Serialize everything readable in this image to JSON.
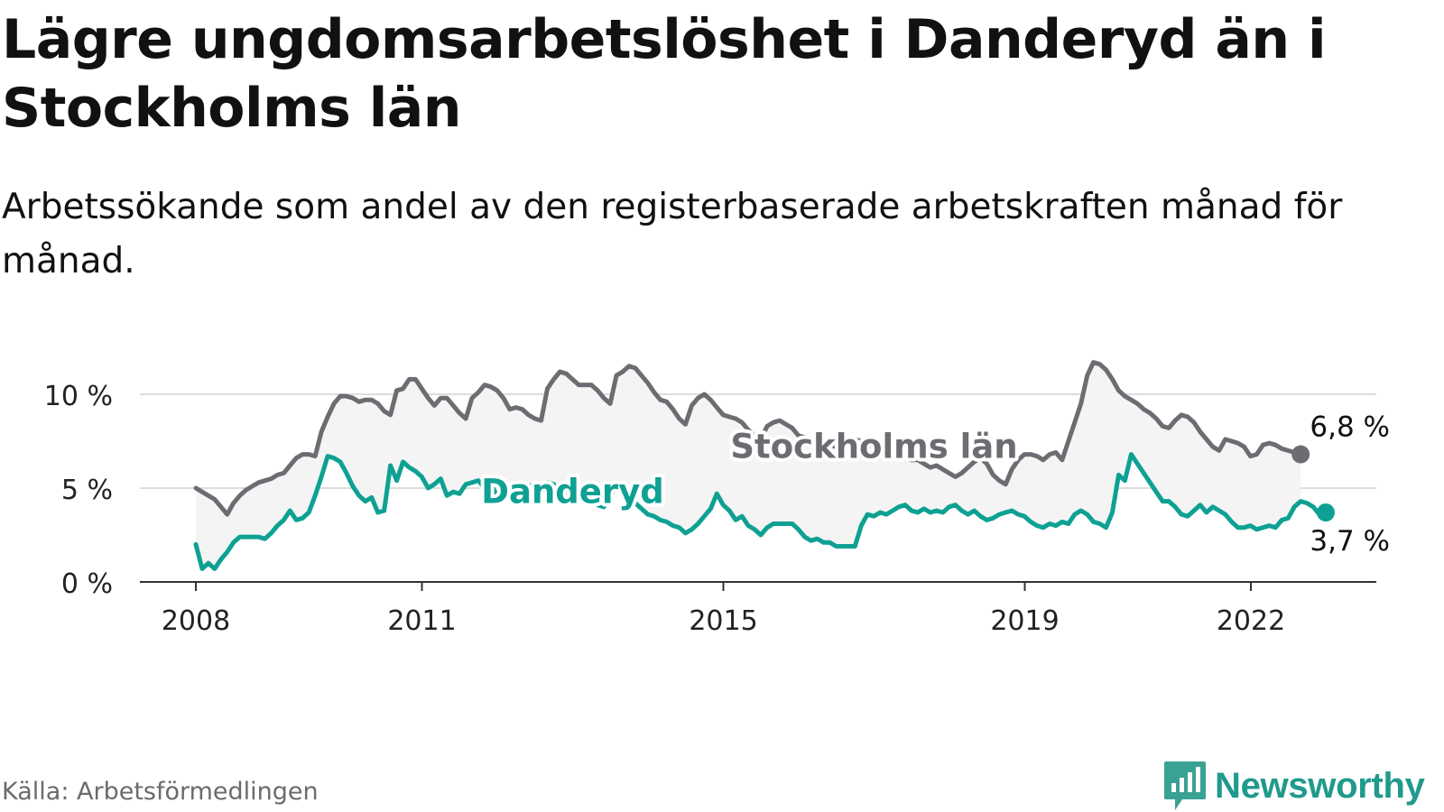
{
  "title": "Lägre ungdomsarbetslöshet i Danderyd än i Stockholms län",
  "subtitle": "Arbetssökande som andel av den registerbaserade arbetskraften månad för månad.",
  "source": "Källa: Arbetsförmedlingen",
  "brand": "Newsworthy",
  "colors": {
    "stockholm": "#6d6c72",
    "danderyd": "#0ea193",
    "band": "#f4f4f4",
    "grid": "#dddddd",
    "axis": "#333333"
  },
  "chart_data": {
    "type": "line",
    "title": "Lägre ungdomsarbetslöshet i Danderyd än i Stockholms län",
    "xlabel": "",
    "ylabel": "",
    "ylim": [
      0,
      12
    ],
    "xlim": [
      2007.6,
      2024.0
    ],
    "y_ticks": [
      0,
      5,
      10
    ],
    "y_tick_labels": [
      "0 %",
      "5 %",
      "10 %"
    ],
    "x_ticks": [
      2008,
      2011,
      2015,
      2019,
      2022
    ],
    "x_tick_labels": [
      "2008",
      "2011",
      "2015",
      "2019",
      "2022"
    ],
    "x_start": 2008.0,
    "x_step": 0.0833,
    "grid": true,
    "series": [
      {
        "name": "Stockholms län",
        "end_label": "6,8 %",
        "values": [
          5.0,
          4.8,
          4.6,
          4.4,
          4.0,
          3.6,
          4.2,
          4.6,
          4.9,
          5.1,
          5.3,
          5.4,
          5.5,
          5.7,
          5.8,
          6.2,
          6.6,
          6.8,
          6.8,
          6.7,
          8.0,
          8.8,
          9.5,
          9.9,
          9.9,
          9.8,
          9.6,
          9.7,
          9.7,
          9.5,
          9.1,
          8.9,
          10.2,
          10.3,
          10.8,
          10.8,
          10.3,
          9.8,
          9.4,
          9.8,
          9.8,
          9.4,
          9.0,
          8.7,
          9.8,
          10.1,
          10.5,
          10.4,
          10.2,
          9.8,
          9.2,
          9.3,
          9.2,
          8.9,
          8.7,
          8.6,
          10.3,
          10.8,
          11.2,
          11.1,
          10.8,
          10.5,
          10.5,
          10.5,
          10.2,
          9.8,
          9.5,
          11.0,
          11.2,
          11.5,
          11.4,
          11.0,
          10.6,
          10.1,
          9.7,
          9.6,
          9.2,
          8.7,
          8.4,
          9.4,
          9.8,
          10.0,
          9.7,
          9.3,
          8.9,
          8.8,
          8.7,
          8.5,
          8.1,
          7.8,
          7.6,
          8.3,
          8.5,
          8.6,
          8.4,
          8.2,
          7.8,
          7.7,
          7.6,
          7.5,
          7.4,
          7.3,
          7.2,
          7.4,
          7.5,
          7.6,
          7.5,
          7.3,
          7.2,
          7.1,
          7.0,
          6.9,
          6.8,
          6.6,
          6.5,
          6.5,
          6.3,
          6.1,
          6.2,
          6.0,
          5.8,
          5.6,
          5.8,
          6.1,
          6.4,
          6.6,
          6.3,
          5.7,
          5.4,
          5.2,
          6.0,
          6.5,
          6.8,
          6.8,
          6.7,
          6.5,
          6.8,
          6.9,
          6.5,
          7.5,
          8.5,
          9.5,
          11.0,
          11.7,
          11.6,
          11.3,
          10.8,
          10.2,
          9.9,
          9.7,
          9.5,
          9.2,
          9.0,
          8.7,
          8.3,
          8.2,
          8.6,
          8.9,
          8.8,
          8.5,
          8.0,
          7.6,
          7.2,
          7.0,
          7.6,
          7.5,
          7.4,
          7.2,
          6.7,
          6.8,
          7.3,
          7.4,
          7.3,
          7.1,
          7.0,
          6.9,
          6.8
        ]
      },
      {
        "name": "Danderyd",
        "end_label": "3,7 %",
        "values": [
          2.0,
          0.7,
          1.0,
          0.7,
          1.2,
          1.6,
          2.1,
          2.4,
          2.4,
          2.4,
          2.4,
          2.3,
          2.6,
          3.0,
          3.3,
          3.8,
          3.3,
          3.4,
          3.7,
          4.6,
          5.6,
          6.7,
          6.6,
          6.4,
          5.8,
          5.1,
          4.6,
          4.3,
          4.5,
          3.7,
          3.8,
          6.2,
          5.4,
          6.4,
          6.1,
          5.9,
          5.6,
          5.0,
          5.2,
          5.5,
          4.6,
          4.8,
          4.7,
          5.2,
          5.3,
          5.4,
          5.0,
          5.2,
          4.6,
          4.8,
          4.7,
          4.9,
          5.0,
          5.1,
          5.2,
          4.9,
          5.3,
          5.2,
          4.8,
          4.6,
          5.0,
          4.8,
          4.5,
          4.3,
          4.1,
          4.0,
          4.5,
          5.2,
          4.8,
          4.5,
          4.2,
          3.9,
          3.6,
          3.5,
          3.3,
          3.2,
          3.0,
          2.9,
          2.6,
          2.8,
          3.1,
          3.5,
          3.9,
          4.7,
          4.1,
          3.8,
          3.3,
          3.5,
          3.0,
          2.8,
          2.5,
          2.9,
          3.1,
          3.1,
          3.1,
          3.1,
          2.8,
          2.4,
          2.2,
          2.3,
          2.1,
          2.1,
          1.9,
          1.9,
          1.9,
          1.9,
          3.0,
          3.6,
          3.5,
          3.7,
          3.6,
          3.8,
          4.0,
          4.1,
          3.8,
          3.7,
          3.9,
          3.7,
          3.8,
          3.7,
          4.0,
          4.1,
          3.8,
          3.6,
          3.8,
          3.5,
          3.3,
          3.4,
          3.6,
          3.7,
          3.8,
          3.6,
          3.5,
          3.2,
          3.0,
          2.9,
          3.1,
          3.0,
          3.2,
          3.1,
          3.6,
          3.8,
          3.6,
          3.2,
          3.1,
          2.9,
          3.7,
          5.7,
          5.4,
          6.8,
          6.3,
          5.8,
          5.3,
          4.8,
          4.3,
          4.3,
          4.0,
          3.6,
          3.5,
          3.8,
          4.1,
          3.7,
          4.0,
          3.8,
          3.6,
          3.2,
          2.9,
          2.9,
          3.0,
          2.8,
          2.9,
          3.0,
          2.9,
          3.3,
          3.4,
          4.0,
          4.3,
          4.2,
          4.0,
          3.6,
          3.7
        ]
      }
    ],
    "annotations": [
      {
        "text": "Stockholms län",
        "series": "Stockholms län",
        "x": 2017.0,
        "y": 6.6
      },
      {
        "text": "Danderyd",
        "series": "Danderyd",
        "x": 2013.0,
        "y": 4.2
      }
    ]
  }
}
